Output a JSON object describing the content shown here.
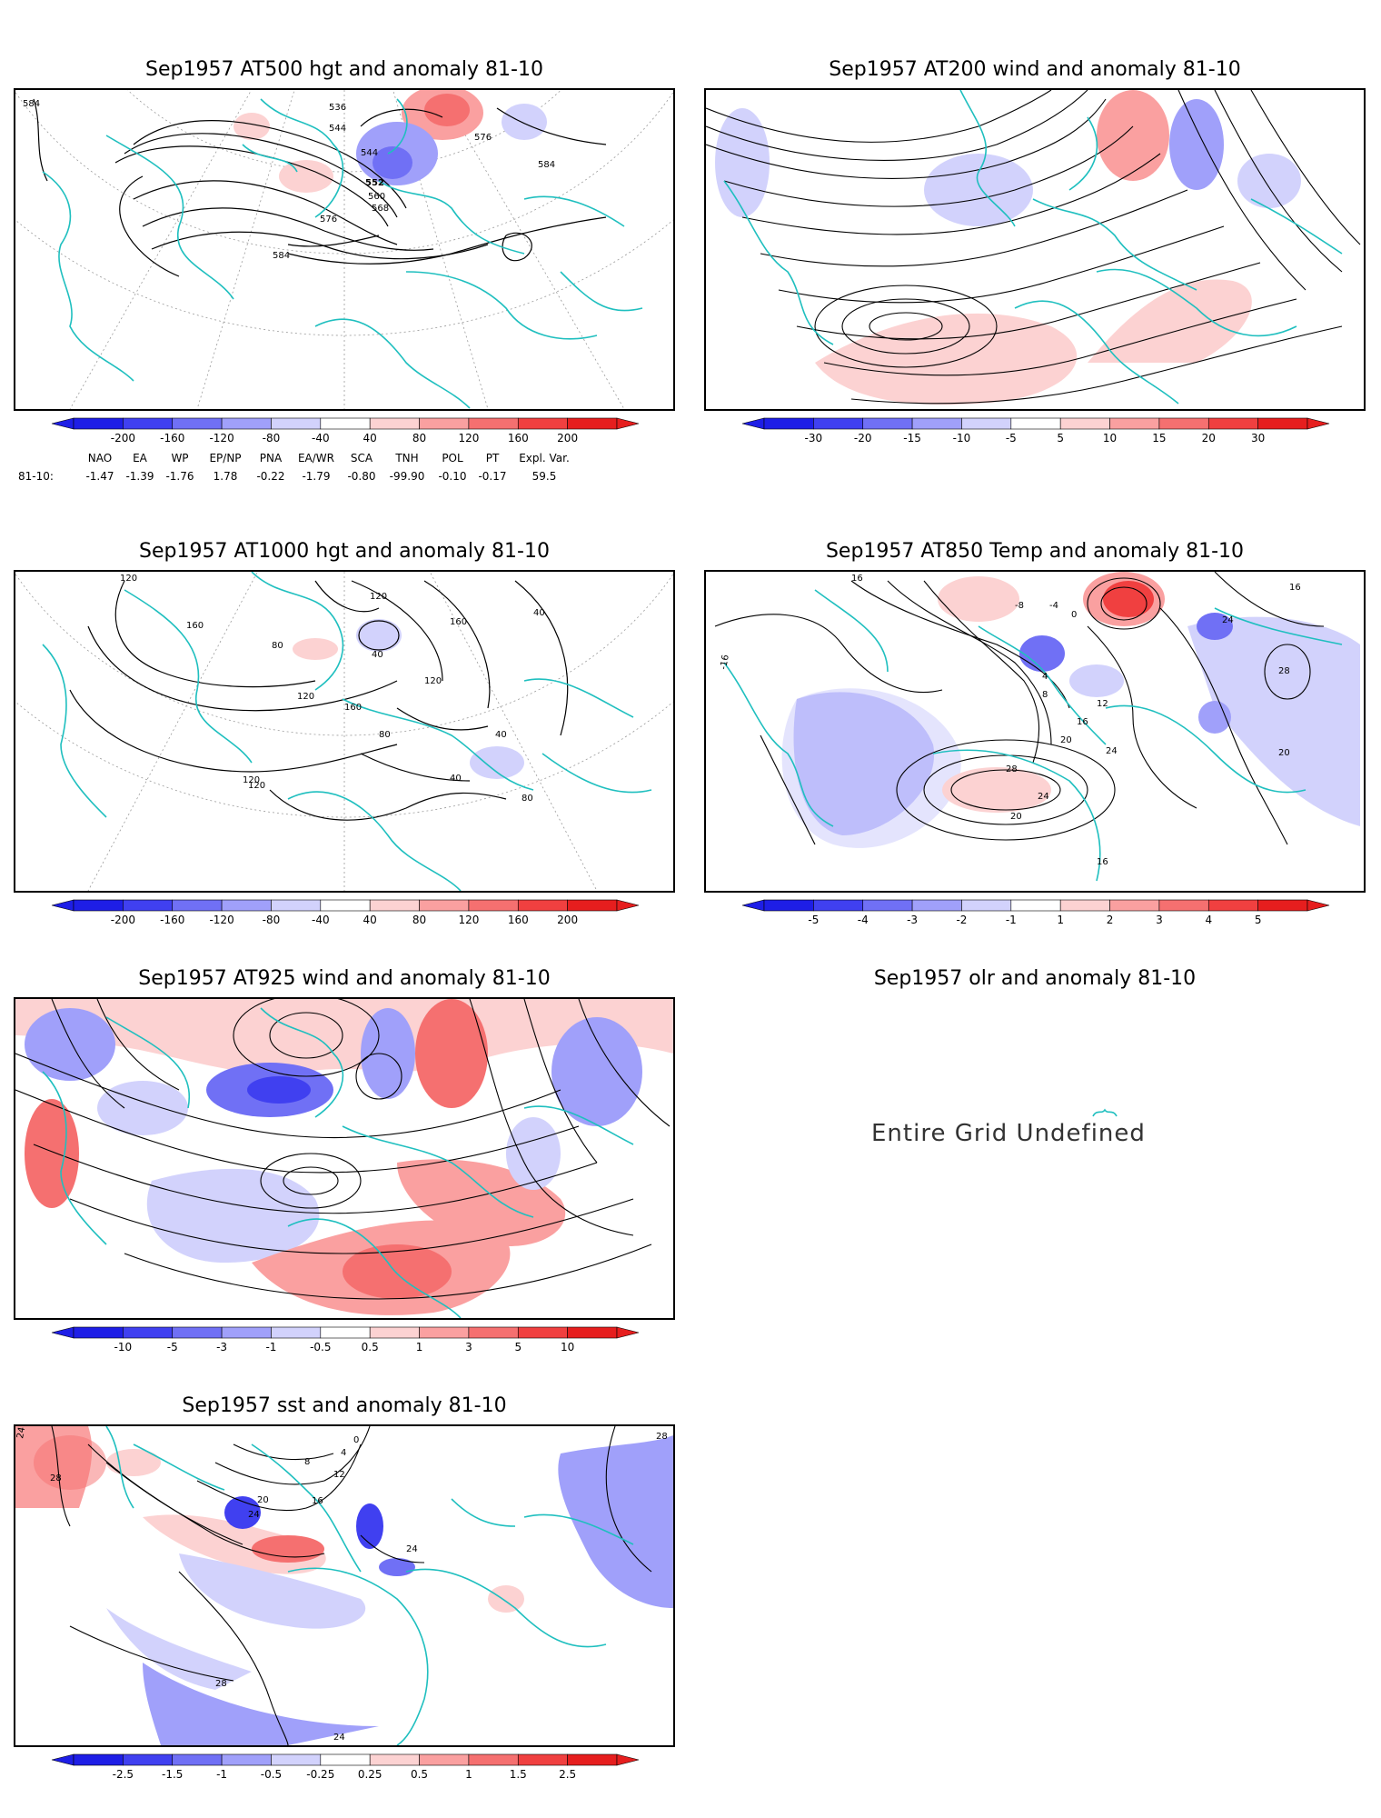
{
  "panels": [
    {
      "id": "p1",
      "title": "Sep1957 AT500 hgt and anomaly 81-10",
      "contour_labels": [
        "584",
        "536",
        "544",
        "544",
        "552",
        "560",
        "568",
        "576",
        "576",
        "584",
        "584"
      ],
      "colorbar": {
        "ticks": [
          "-200",
          "-160",
          "-120",
          "-80",
          "-40",
          "40",
          "80",
          "120",
          "160",
          "200"
        ]
      }
    },
    {
      "id": "p2",
      "title": "Sep1957 AT200 wind and anomaly 81-10",
      "contour_labels": [],
      "colorbar": {
        "ticks": [
          "-30",
          "-20",
          "-15",
          "-10",
          "-5",
          "5",
          "10",
          "15",
          "20",
          "30"
        ]
      }
    },
    {
      "id": "p3",
      "title": "Sep1957 AT1000 hgt and anomaly 81-10",
      "contour_labels": [
        "120",
        "160",
        "80",
        "120",
        "160",
        "160",
        "120",
        "40",
        "40",
        "120",
        "80",
        "120",
        "40",
        "40",
        "80",
        "120"
      ],
      "colorbar": {
        "ticks": [
          "-200",
          "-160",
          "-120",
          "-80",
          "-40",
          "40",
          "80",
          "120",
          "160",
          "200"
        ]
      }
    },
    {
      "id": "p4",
      "title": "Sep1957 AT850 Temp and anomaly 81-10",
      "contour_labels": [
        "16",
        "-16",
        "-8",
        "-4",
        "0",
        "4",
        "8",
        "12",
        "16",
        "20",
        "24",
        "28",
        "24",
        "20",
        "16",
        "24",
        "16",
        "28",
        "20"
      ],
      "colorbar": {
        "ticks": [
          "-5",
          "-4",
          "-3",
          "-2",
          "-1",
          "1",
          "2",
          "3",
          "4",
          "5"
        ]
      }
    },
    {
      "id": "p5",
      "title": "Sep1957 AT925 wind and anomaly 81-10",
      "contour_labels": [],
      "colorbar": {
        "ticks": [
          "-10",
          "-5",
          "-3",
          "-1",
          "-0.5",
          "0.5",
          "1",
          "3",
          "5",
          "10"
        ]
      }
    },
    {
      "id": "p6",
      "title": "Sep1957 olr and anomaly 81-10",
      "message": "Entire Grid Undefined"
    },
    {
      "id": "p7",
      "title": "Sep1957 sst and anomaly 81-10",
      "contour_labels": [
        "24",
        "28",
        "20",
        "24",
        "16",
        "12",
        "8",
        "4",
        "0",
        "24",
        "28",
        "28",
        "24"
      ],
      "colorbar": {
        "ticks": [
          "-2.5",
          "-1.5",
          "-1",
          "-0.5",
          "-0.25",
          "0.25",
          "0.5",
          "1",
          "1.5",
          "2.5"
        ]
      }
    }
  ],
  "indices": {
    "headers": [
      "NAO",
      "EA",
      "WP",
      "EP/NP",
      "PNA",
      "EA/WR",
      "SCA",
      "TNH",
      "POL",
      "PT",
      "Expl. Var."
    ],
    "row_label": "81-10:",
    "values": [
      "-1.47",
      "-1.39",
      "-1.76",
      "1.78",
      "-0.22",
      "-1.79",
      "-0.80",
      "-99.90",
      "-0.10",
      "-0.17",
      "59.5"
    ]
  },
  "colors": {
    "coast": "#1fbfbf",
    "blue_scale": [
      "#1e1ee6",
      "#4040f0",
      "#7070f5",
      "#a0a0fa",
      "#d2d2fc"
    ],
    "red_scale": [
      "#fcd2d2",
      "#faa0a0",
      "#f57070",
      "#f04040",
      "#e61e1e"
    ]
  }
}
